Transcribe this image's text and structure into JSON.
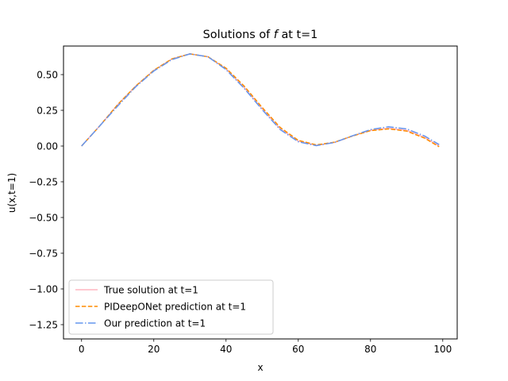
{
  "chart_data": {
    "type": "line",
    "title": "Solutions of f at t=1",
    "title_parts": {
      "prefix": "Solutions of ",
      "italic": "f",
      "suffix": " at t=1"
    },
    "xlabel": "x",
    "ylabel": "u(x,t=1)",
    "xlim": [
      -5,
      104
    ],
    "ylim": [
      -1.35,
      0.7
    ],
    "x_ticks": [
      0,
      20,
      40,
      60,
      80,
      100
    ],
    "x_tick_labels": [
      "0",
      "20",
      "40",
      "60",
      "80",
      "100"
    ],
    "y_ticks": [
      0.5,
      0.25,
      0.0,
      -0.25,
      -0.5,
      -0.75,
      -1.0,
      -1.25
    ],
    "y_tick_labels": [
      "0.50",
      "0.25",
      "0.00",
      "−0.25",
      "−0.50",
      "−0.75",
      "−1.00",
      "−1.25"
    ],
    "grid": false,
    "legend_position": "lower-left",
    "x": [
      0,
      5,
      10,
      15,
      20,
      25,
      30,
      35,
      40,
      45,
      50,
      55,
      60,
      65,
      70,
      75,
      80,
      85,
      90,
      95,
      99
    ],
    "series": [
      {
        "name": "True solution at t=1",
        "color": "#ffb6c1",
        "style": "solid",
        "values": [
          0.0,
          0.14,
          0.29,
          0.42,
          0.53,
          0.61,
          0.645,
          0.625,
          0.54,
          0.41,
          0.26,
          0.12,
          0.035,
          0.005,
          0.025,
          0.07,
          0.11,
          0.125,
          0.11,
          0.06,
          0.0
        ]
      },
      {
        "name": "PIDeepONet prediction at t=1",
        "color": "#ff8c00",
        "style": "dashed",
        "values": [
          0.0,
          0.14,
          0.29,
          0.42,
          0.53,
          0.61,
          0.645,
          0.625,
          0.545,
          0.42,
          0.27,
          0.13,
          0.04,
          0.008,
          0.027,
          0.07,
          0.108,
          0.12,
          0.105,
          0.055,
          -0.005
        ]
      },
      {
        "name": "Our prediction at t=1",
        "color": "#6495ed",
        "style": "dashdot",
        "values": [
          0.0,
          0.14,
          0.28,
          0.415,
          0.525,
          0.605,
          0.645,
          0.625,
          0.535,
          0.405,
          0.255,
          0.115,
          0.03,
          0.003,
          0.025,
          0.072,
          0.115,
          0.135,
          0.12,
          0.07,
          0.01
        ]
      }
    ]
  }
}
